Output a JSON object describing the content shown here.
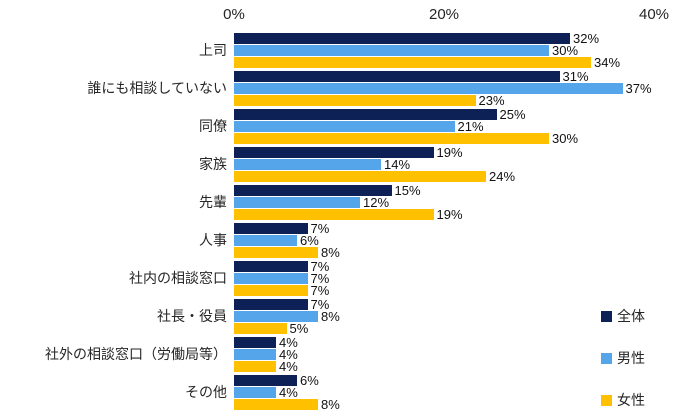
{
  "chart_data": {
    "type": "bar",
    "orientation": "horizontal",
    "title": "",
    "xlabel": "",
    "ylabel": "",
    "xlim": [
      0,
      40
    ],
    "axis_position": "top",
    "grid": false,
    "data_labels": true,
    "value_suffix": "%",
    "x_ticks": [
      {
        "label": "0%",
        "value": 0
      },
      {
        "label": "20%",
        "value": 20
      },
      {
        "label": "40%",
        "value": 40
      }
    ],
    "categories": [
      "上司",
      "誰にも相談していない",
      "同僚",
      "家族",
      "先輩",
      "人事",
      "社内の相談窓口",
      "社長・役員",
      "社外の相談窓口（労働局等）",
      "その他"
    ],
    "series": [
      {
        "id": "overall",
        "name": "全体",
        "color": "#0e2157",
        "values": [
          32,
          31,
          25,
          19,
          15,
          7,
          7,
          7,
          4,
          6
        ]
      },
      {
        "id": "male",
        "name": "男性",
        "color": "#54a5ea",
        "values": [
          30,
          37,
          21,
          14,
          12,
          6,
          7,
          8,
          4,
          4
        ]
      },
      {
        "id": "female",
        "name": "女性",
        "color": "#ffc000",
        "values": [
          34,
          23,
          30,
          24,
          19,
          8,
          7,
          5,
          4,
          8
        ]
      }
    ],
    "legend_position": "bottom-right"
  },
  "layout_colors": {
    "background": "#ffffff",
    "text": "#262626"
  }
}
